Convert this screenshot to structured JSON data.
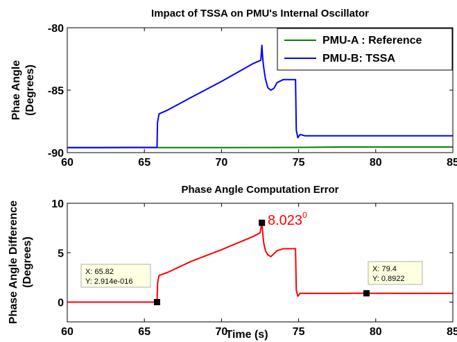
{
  "chart_data": [
    {
      "type": "line",
      "title": "Impact of TSSA on PMU's Internal Oscillator",
      "xlabel": "",
      "ylabel_lines": [
        "Phae Angle",
        "(Degrees)"
      ],
      "xlim": [
        60,
        85
      ],
      "ylim": [
        -90,
        -80
      ],
      "xticks": [
        60,
        65,
        70,
        75,
        80,
        85
      ],
      "yticks": [
        -90,
        -85,
        -80
      ],
      "grid": false,
      "legend_position": "top-right",
      "series": [
        {
          "name": "PMU-A : Reference",
          "color": "#008000",
          "x": [
            60,
            65,
            70,
            75,
            78,
            80,
            82,
            85
          ],
          "y": [
            -89.6,
            -89.6,
            -89.6,
            -89.58,
            -89.55,
            -89.55,
            -89.55,
            -89.55
          ]
        },
        {
          "name": "PMU-B: TSSA",
          "color": "#0000ff",
          "x": [
            60,
            62,
            64,
            65.82,
            65.85,
            65.95,
            66.5,
            68,
            70,
            72,
            72.55,
            72.62,
            72.66,
            72.7,
            72.75,
            72.85,
            73.0,
            73.2,
            73.4,
            73.6,
            74.0,
            74.4,
            74.8,
            74.85,
            74.95,
            75.1,
            75.4,
            76,
            78,
            80,
            82,
            85
          ],
          "y": [
            -89.6,
            -89.6,
            -89.58,
            -89.58,
            -87.6,
            -86.9,
            -86.6,
            -85.6,
            -84.3,
            -82.9,
            -82.6,
            -81.4,
            -82.2,
            -82.8,
            -83.3,
            -84.1,
            -84.8,
            -85.0,
            -84.85,
            -84.4,
            -84.15,
            -84.15,
            -84.15,
            -88.2,
            -88.8,
            -88.55,
            -88.65,
            -88.65,
            -88.65,
            -88.65,
            -88.65,
            -88.65
          ]
        }
      ]
    },
    {
      "type": "line",
      "title": "Phase Angle Computation Error",
      "xlabel": "Time (s)",
      "ylabel_lines": [
        "Phase Angle Difference",
        "(Degrees)"
      ],
      "xlim": [
        60,
        85
      ],
      "ylim": [
        -2,
        10
      ],
      "xticks": [
        60,
        65,
        70,
        75,
        80,
        85
      ],
      "yticks": [
        0,
        5,
        10
      ],
      "grid": false,
      "series": [
        {
          "name": "",
          "color": "#ff0000",
          "x": [
            60,
            62,
            64,
            65.82,
            65.86,
            65.95,
            66.5,
            68,
            70,
            72,
            72.5,
            72.62,
            72.66,
            72.7,
            72.75,
            72.85,
            73.0,
            73.2,
            73.4,
            73.6,
            74.0,
            74.4,
            74.8,
            74.85,
            74.95,
            75.1,
            75.4,
            76,
            78,
            79.4,
            82,
            85
          ],
          "y": [
            0,
            0,
            0,
            0,
            2.0,
            2.7,
            3.0,
            4.1,
            5.3,
            6.6,
            7.0,
            8.023,
            7.3,
            6.5,
            5.9,
            5.2,
            4.8,
            4.6,
            4.9,
            5.2,
            5.4,
            5.4,
            5.4,
            1.2,
            0.6,
            0.9,
            0.89,
            0.89,
            0.89,
            0.8922,
            0.89,
            0.89
          ]
        }
      ],
      "datatips": [
        {
          "x_label": "X: 65.82",
          "y_label": "Y: 2.914e-016",
          "x": 65.82,
          "y": 0
        },
        {
          "x_label": "X: 79.4",
          "y_label": "Y: 0.8922",
          "x": 79.4,
          "y": 0.8922
        }
      ],
      "peak_marker": {
        "x": 72.62,
        "y": 8.023
      },
      "callout": {
        "text": "8.023",
        "sup": "0"
      }
    }
  ]
}
